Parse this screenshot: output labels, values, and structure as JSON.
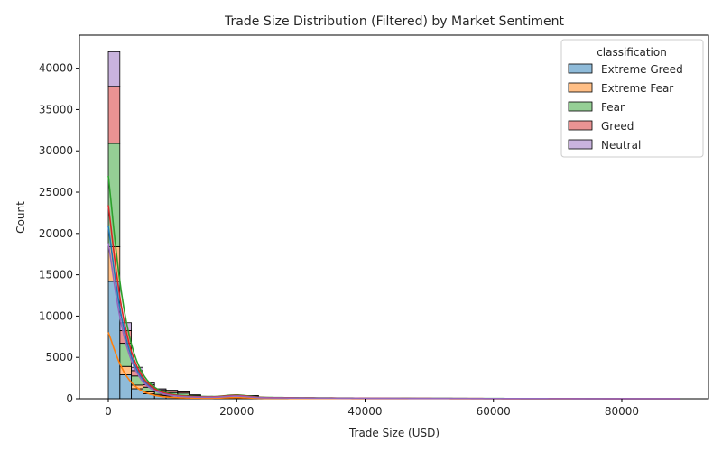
{
  "chart_data": {
    "type": "bar",
    "subtype": "stacked-histogram-with-kde",
    "title": "Trade Size Distribution (Filtered) by Market Sentiment",
    "xlabel": "Trade Size (USD)",
    "ylabel": "Count",
    "xlim": [
      -4500,
      93500
    ],
    "ylim": [
      0,
      44000
    ],
    "xticks": [
      0,
      20000,
      40000,
      60000,
      80000
    ],
    "yticks": [
      0,
      5000,
      10000,
      15000,
      20000,
      25000,
      30000,
      35000,
      40000
    ],
    "bin_width": 1800,
    "bin_start": 0,
    "grid": false,
    "legend": {
      "title": "classification",
      "placement": "top-right"
    },
    "series": [
      {
        "name": "Extreme Greed",
        "color": "#1f77b4",
        "values": [
          14200,
          2900,
          1200,
          600,
          380,
          330,
          300,
          150,
          90,
          60,
          45,
          30,
          80,
          40,
          25,
          20,
          15,
          10
        ]
      },
      {
        "name": "Extreme Fear",
        "color": "#ff7f0e",
        "values": [
          4200,
          1000,
          450,
          230,
          140,
          110,
          95,
          60,
          40,
          30,
          25,
          20,
          35,
          20,
          15,
          10,
          8,
          6
        ]
      },
      {
        "name": "Fear",
        "color": "#2ca02c",
        "values": [
          12500,
          2800,
          1100,
          560,
          350,
          300,
          280,
          140,
          85,
          55,
          45,
          30,
          160,
          50,
          30,
          22,
          18,
          12
        ]
      },
      {
        "name": "Greed",
        "color": "#d62728",
        "values": [
          6900,
          1550,
          650,
          320,
          200,
          180,
          160,
          80,
          50,
          35,
          28,
          20,
          70,
          30,
          18,
          14,
          10,
          8
        ]
      },
      {
        "name": "Neutral",
        "color": "#9467bd",
        "values": [
          4200,
          950,
          400,
          200,
          130,
          110,
          95,
          50,
          32,
          22,
          18,
          12,
          40,
          20,
          12,
          8,
          6,
          4
        ]
      }
    ],
    "kde_peaks": [
      {
        "name": "Extreme Greed",
        "peak": 20500
      },
      {
        "name": "Extreme Fear",
        "peak": 7900
      },
      {
        "name": "Fear",
        "peak": 26500
      },
      {
        "name": "Greed",
        "peak": 23000
      },
      {
        "name": "Neutral",
        "peak": 18500
      }
    ]
  }
}
